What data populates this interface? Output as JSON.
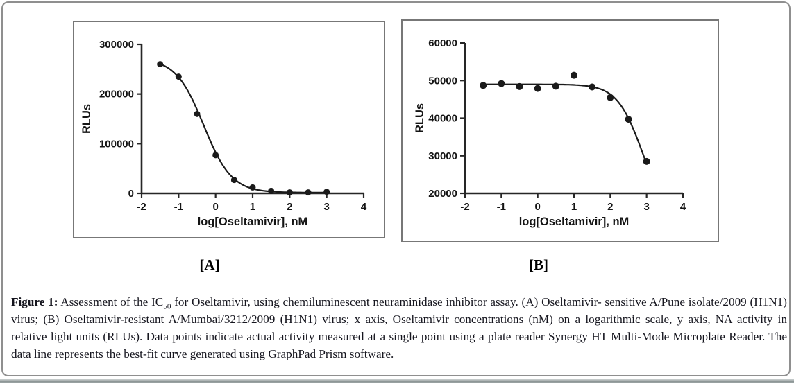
{
  "caption": {
    "label": "Figure 1:",
    "pre_sub": " Assessment of the IC",
    "sub": "50",
    "post_sub": " for Oseltamivir, using chemiluminescent neuraminidase inhibitor assay. (A) Oseltamivir- sensitive A/Pune isolate/2009 (H1N1) virus; (B) Oseltamivir-resistant A/Mumbai/3212/2009 (H1N1) virus; x axis, Oseltamivir concentrations (nM) on a logarithmic scale, y axis, NA activity in relative light units (RLUs). Data points indicate actual activity measured at a single point using a plate reader Synergy HT Multi-Mode Microplate Reader. The data line represents the best-fit curve generated using GraphPad Prism software."
  },
  "colors": {
    "marker": "#1a1a1a",
    "curve": "#1a1a1a",
    "axis": "#262626",
    "panel_frame": "#777777",
    "outer_frame": "#8f8f8f"
  },
  "chart_data": [
    {
      "type": "scatter",
      "panel_label": "[A]",
      "title": "",
      "xlabel": "log[Oseltamivir], nM",
      "ylabel": "RLUs",
      "xlim": [
        -2,
        4
      ],
      "ylim": [
        0,
        300000
      ],
      "xticks": [
        -2,
        -1,
        0,
        1,
        2,
        3,
        4
      ],
      "yticks": [
        0,
        100000,
        200000,
        300000
      ],
      "grid": false,
      "legend": "none",
      "x": [
        -1.5,
        -1.0,
        -0.5,
        0.0,
        0.5,
        1.0,
        1.5,
        2.0,
        2.5,
        3.0
      ],
      "y": [
        260000,
        235000,
        160000,
        77000,
        27000,
        12000,
        5000,
        2000,
        2000,
        3000
      ],
      "fit_curve": {
        "model": "4PL-inhibition",
        "top": 272000,
        "bottom": 1500,
        "logIC50": -0.32,
        "hillslope": 1.15,
        "x_start": -1.55,
        "x_end": 3.0
      },
      "marker_color": "#1a1a1a",
      "line_color": "#1a1a1a",
      "marker_size": 4.5,
      "axis_color": "#262626"
    },
    {
      "type": "scatter",
      "panel_label": "[B]",
      "title": "",
      "xlabel": "log[Oseltamivir], nM",
      "ylabel": "RLUs",
      "xlim": [
        -2,
        4
      ],
      "ylim": [
        20000,
        60000
      ],
      "xticks": [
        -2,
        -1,
        0,
        1,
        2,
        3,
        4
      ],
      "yticks": [
        20000,
        30000,
        40000,
        50000,
        60000
      ],
      "grid": false,
      "legend": "none",
      "x": [
        -1.5,
        -1.0,
        -0.5,
        0.0,
        0.5,
        1.0,
        1.5,
        2.0,
        2.5,
        3.0
      ],
      "y": [
        48700,
        49200,
        48400,
        47900,
        48500,
        51400,
        48300,
        45500,
        39700,
        28500
      ],
      "fit_curve": {
        "model": "4PL-inhibition",
        "top": 49000,
        "bottom": 13000,
        "logIC50": 2.88,
        "hillslope": 1.25,
        "x_start": -1.55,
        "x_end": 3.02
      },
      "marker_color": "#1a1a1a",
      "line_color": "#1a1a1a",
      "marker_size": 5,
      "axis_color": "#262626"
    }
  ]
}
